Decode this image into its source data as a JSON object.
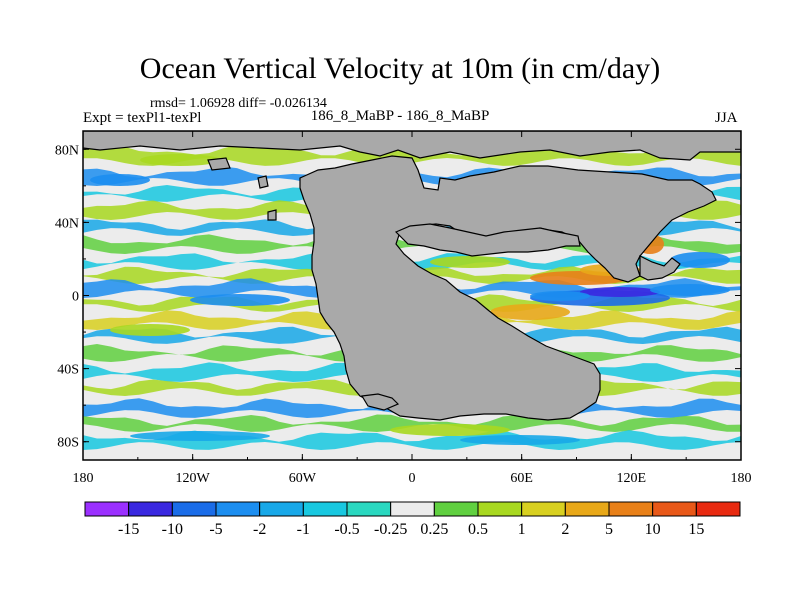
{
  "title": "Ocean Vertical Velocity at 10m (in cm/day)",
  "stats_text": "rmsd= 1.06928 diff= -0.026134",
  "expt_text": "Expt = texPl1-texPl",
  "subtitle": "186_8_MaBP - 186_8_MaBP",
  "season": "JJA",
  "chart_data": {
    "type": "heatmap",
    "map_projection": "cylindrical equidistant",
    "x_ticks": [
      "180",
      "120W",
      "60W",
      "0",
      "60E",
      "120E",
      "180"
    ],
    "y_ticks": [
      "80N",
      "40N",
      "0",
      "40S",
      "80S"
    ],
    "xlim": [
      -180,
      180
    ],
    "ylim": [
      -90,
      90
    ],
    "colorbar": {
      "labels": [
        "-15",
        "-10",
        "-5",
        "-2",
        "-1",
        "-0.5",
        "-0.25",
        "0.25",
        "0.5",
        "1",
        "2",
        "5",
        "10",
        "15"
      ],
      "colors": [
        "#9b30ff",
        "#3a28e0",
        "#1a6ce8",
        "#1c8ef0",
        "#18a8e8",
        "#18c8e0",
        "#2ad8c0",
        "#ececec",
        "#60d040",
        "#a8d820",
        "#d8d020",
        "#e8a818",
        "#e88018",
        "#e85818",
        "#e82a10"
      ]
    },
    "land_color": "#a9a9a9"
  }
}
